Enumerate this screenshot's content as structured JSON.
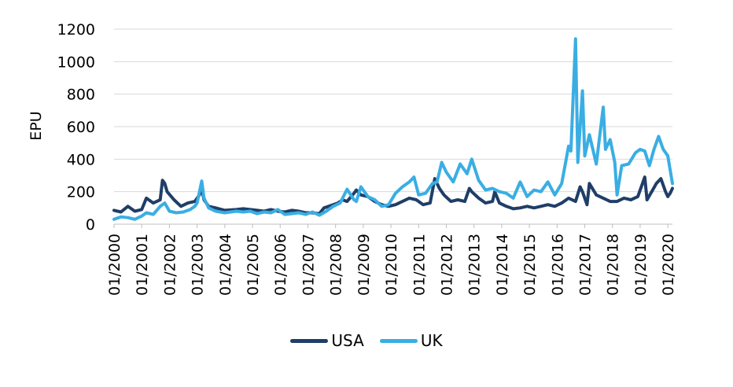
{
  "chart_data": {
    "type": "line",
    "title": "",
    "xlabel": "",
    "ylabel": "EPU",
    "ylim": [
      0,
      1200
    ],
    "yticks": [
      0,
      200,
      400,
      600,
      800,
      1000,
      1200
    ],
    "xticks": [
      "01/2000",
      "01/2001",
      "01/2002",
      "01/2003",
      "01/2004",
      "01/2005",
      "01/2006",
      "01/2007",
      "01/2008",
      "01/2009",
      "01/2010",
      "01/2011",
      "01/2012",
      "01/2013",
      "01/2014",
      "01/2015",
      "01/2016",
      "01/2017",
      "01/2018",
      "01/2019",
      "01/2020"
    ],
    "x_range": [
      "01/2000",
      "03/2020"
    ],
    "grid": "horizontal",
    "legend_position": "bottom",
    "series": [
      {
        "name": "USA",
        "color": "#1f3e68",
        "points": [
          [
            "2000-01",
            85
          ],
          [
            "2000-04",
            75
          ],
          [
            "2000-07",
            110
          ],
          [
            "2000-10",
            80
          ],
          [
            "2001-01",
            90
          ],
          [
            "2001-03",
            160
          ],
          [
            "2001-06",
            130
          ],
          [
            "2001-09",
            150
          ],
          [
            "2001-10",
            270
          ],
          [
            "2001-11",
            250
          ],
          [
            "2001-12",
            200
          ],
          [
            "2002-03",
            150
          ],
          [
            "2002-06",
            110
          ],
          [
            "2002-09",
            130
          ],
          [
            "2002-12",
            140
          ],
          [
            "2003-02",
            180
          ],
          [
            "2003-03",
            220
          ],
          [
            "2003-04",
            150
          ],
          [
            "2003-06",
            110
          ],
          [
            "2003-09",
            100
          ],
          [
            "2004-01",
            85
          ],
          [
            "2004-06",
            90
          ],
          [
            "2004-09",
            95
          ],
          [
            "2004-12",
            90
          ],
          [
            "2005-03",
            85
          ],
          [
            "2005-06",
            80
          ],
          [
            "2005-09",
            90
          ],
          [
            "2005-12",
            80
          ],
          [
            "2006-03",
            75
          ],
          [
            "2006-06",
            85
          ],
          [
            "2006-09",
            80
          ],
          [
            "2006-12",
            70
          ],
          [
            "2007-03",
            70
          ],
          [
            "2007-06",
            65
          ],
          [
            "2007-08",
            100
          ],
          [
            "2007-10",
            110
          ],
          [
            "2007-12",
            120
          ],
          [
            "2008-02",
            130
          ],
          [
            "2008-04",
            150
          ],
          [
            "2008-06",
            140
          ],
          [
            "2008-09",
            190
          ],
          [
            "2008-10",
            210
          ],
          [
            "2008-12",
            180
          ],
          [
            "2009-03",
            170
          ],
          [
            "2009-06",
            140
          ],
          [
            "2009-09",
            120
          ],
          [
            "2009-12",
            110
          ],
          [
            "2010-03",
            120
          ],
          [
            "2010-06",
            140
          ],
          [
            "2010-09",
            160
          ],
          [
            "2010-12",
            150
          ],
          [
            "2011-03",
            120
          ],
          [
            "2011-06",
            130
          ],
          [
            "2011-08",
            280
          ],
          [
            "2011-10",
            220
          ],
          [
            "2011-12",
            180
          ],
          [
            "2012-03",
            140
          ],
          [
            "2012-06",
            150
          ],
          [
            "2012-09",
            140
          ],
          [
            "2012-11",
            220
          ],
          [
            "2012-12",
            200
          ],
          [
            "2013-03",
            160
          ],
          [
            "2013-06",
            130
          ],
          [
            "2013-09",
            140
          ],
          [
            "2013-10",
            200
          ],
          [
            "2013-12",
            130
          ],
          [
            "2014-03",
            110
          ],
          [
            "2014-06",
            95
          ],
          [
            "2014-09",
            100
          ],
          [
            "2014-12",
            110
          ],
          [
            "2015-03",
            100
          ],
          [
            "2015-06",
            110
          ],
          [
            "2015-09",
            120
          ],
          [
            "2015-12",
            110
          ],
          [
            "2016-03",
            130
          ],
          [
            "2016-06",
            160
          ],
          [
            "2016-09",
            140
          ],
          [
            "2016-11",
            230
          ],
          [
            "2016-12",
            200
          ],
          [
            "2017-02",
            120
          ],
          [
            "2017-03",
            250
          ],
          [
            "2017-06",
            180
          ],
          [
            "2017-09",
            160
          ],
          [
            "2017-12",
            140
          ],
          [
            "2018-03",
            140
          ],
          [
            "2018-06",
            160
          ],
          [
            "2018-09",
            150
          ],
          [
            "2018-12",
            170
          ],
          [
            "2019-02",
            250
          ],
          [
            "2019-03",
            290
          ],
          [
            "2019-04",
            150
          ],
          [
            "2019-06",
            200
          ],
          [
            "2019-08",
            250
          ],
          [
            "2019-10",
            280
          ],
          [
            "2019-12",
            200
          ],
          [
            "2020-01",
            170
          ],
          [
            "2020-02",
            190
          ],
          [
            "2020-03",
            220
          ]
        ]
      },
      {
        "name": "UK",
        "color": "#3aaee3",
        "points": [
          [
            "2000-01",
            30
          ],
          [
            "2000-04",
            45
          ],
          [
            "2000-07",
            40
          ],
          [
            "2000-10",
            30
          ],
          [
            "2001-01",
            50
          ],
          [
            "2001-03",
            70
          ],
          [
            "2001-06",
            60
          ],
          [
            "2001-09",
            110
          ],
          [
            "2001-11",
            130
          ],
          [
            "2002-01",
            80
          ],
          [
            "2002-04",
            70
          ],
          [
            "2002-07",
            75
          ],
          [
            "2002-10",
            90
          ],
          [
            "2002-12",
            110
          ],
          [
            "2003-01",
            130
          ],
          [
            "2003-03",
            265
          ],
          [
            "2003-04",
            160
          ],
          [
            "2003-06",
            100
          ],
          [
            "2003-09",
            80
          ],
          [
            "2004-01",
            70
          ],
          [
            "2004-06",
            80
          ],
          [
            "2004-09",
            75
          ],
          [
            "2004-12",
            80
          ],
          [
            "2005-03",
            65
          ],
          [
            "2005-06",
            75
          ],
          [
            "2005-09",
            70
          ],
          [
            "2005-12",
            90
          ],
          [
            "2006-03",
            60
          ],
          [
            "2006-06",
            65
          ],
          [
            "2006-09",
            70
          ],
          [
            "2006-12",
            60
          ],
          [
            "2007-03",
            75
          ],
          [
            "2007-06",
            55
          ],
          [
            "2007-09",
            80
          ],
          [
            "2007-12",
            110
          ],
          [
            "2008-03",
            130
          ],
          [
            "2008-06",
            215
          ],
          [
            "2008-09",
            150
          ],
          [
            "2008-10",
            140
          ],
          [
            "2008-12",
            230
          ],
          [
            "2009-03",
            170
          ],
          [
            "2009-06",
            150
          ],
          [
            "2009-09",
            110
          ],
          [
            "2009-12",
            120
          ],
          [
            "2010-03",
            190
          ],
          [
            "2010-06",
            230
          ],
          [
            "2010-09",
            260
          ],
          [
            "2010-11",
            290
          ],
          [
            "2011-01",
            180
          ],
          [
            "2011-04",
            190
          ],
          [
            "2011-07",
            250
          ],
          [
            "2011-09",
            260
          ],
          [
            "2011-11",
            380
          ],
          [
            "2012-01",
            320
          ],
          [
            "2012-04",
            260
          ],
          [
            "2012-07",
            370
          ],
          [
            "2012-10",
            310
          ],
          [
            "2012-12",
            400
          ],
          [
            "2013-03",
            270
          ],
          [
            "2013-06",
            210
          ],
          [
            "2013-09",
            220
          ],
          [
            "2013-12",
            200
          ],
          [
            "2014-03",
            190
          ],
          [
            "2014-06",
            160
          ],
          [
            "2014-09",
            260
          ],
          [
            "2014-12",
            170
          ],
          [
            "2015-03",
            210
          ],
          [
            "2015-06",
            200
          ],
          [
            "2015-09",
            260
          ],
          [
            "2015-12",
            180
          ],
          [
            "2016-03",
            250
          ],
          [
            "2016-06",
            480
          ],
          [
            "2016-07",
            450
          ],
          [
            "2016-09",
            1140
          ],
          [
            "2016-10",
            380
          ],
          [
            "2016-12",
            820
          ],
          [
            "2017-01",
            420
          ],
          [
            "2017-03",
            550
          ],
          [
            "2017-06",
            370
          ],
          [
            "2017-09",
            720
          ],
          [
            "2017-10",
            460
          ],
          [
            "2017-12",
            520
          ],
          [
            "2018-02",
            380
          ],
          [
            "2018-03",
            180
          ],
          [
            "2018-05",
            360
          ],
          [
            "2018-08",
            370
          ],
          [
            "2018-11",
            440
          ],
          [
            "2019-01",
            460
          ],
          [
            "2019-03",
            450
          ],
          [
            "2019-05",
            360
          ],
          [
            "2019-07",
            460
          ],
          [
            "2019-09",
            540
          ],
          [
            "2019-11",
            460
          ],
          [
            "2020-01",
            420
          ],
          [
            "2020-03",
            250
          ]
        ]
      }
    ]
  }
}
